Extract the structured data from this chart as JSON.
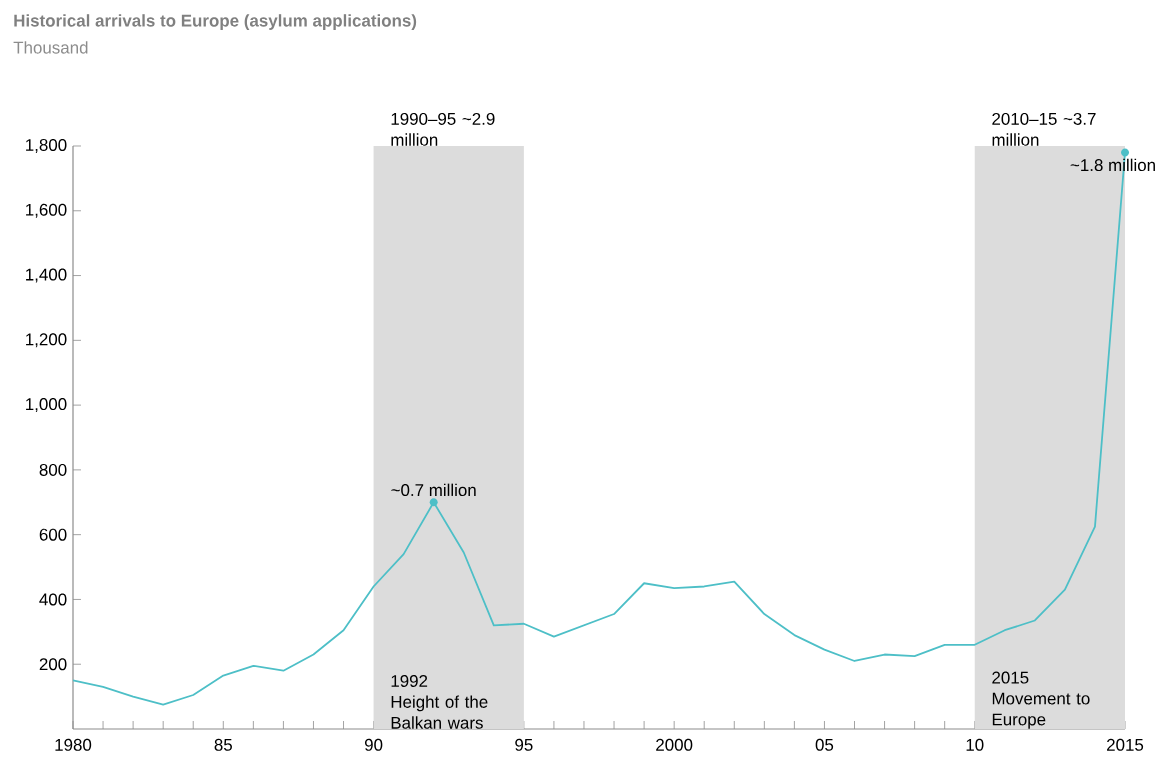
{
  "chart_data": {
    "type": "line",
    "title": "Historical arrivals to Europe (asylum applications)",
    "subtitle": "Thousand",
    "x": [
      1980,
      1981,
      1982,
      1983,
      1984,
      1985,
      1986,
      1987,
      1988,
      1989,
      1990,
      1991,
      1992,
      1993,
      1994,
      1995,
      1996,
      1997,
      1998,
      1999,
      2000,
      2001,
      2002,
      2003,
      2004,
      2005,
      2006,
      2007,
      2008,
      2009,
      2010,
      2011,
      2012,
      2013,
      2014,
      2015
    ],
    "values": [
      150,
      130,
      100,
      75,
      105,
      165,
      195,
      180,
      230,
      305,
      440,
      540,
      700,
      545,
      320,
      325,
      285,
      320,
      355,
      450,
      435,
      440,
      455,
      355,
      290,
      245,
      210,
      230,
      225,
      260,
      260,
      305,
      335,
      430,
      625,
      1780
    ],
    "color": "#4dbfc7",
    "xlim": [
      1980,
      2015
    ],
    "ylim": [
      0,
      1800
    ],
    "xticks": [
      1980,
      {
        "value": 1981,
        "label": null
      },
      {
        "value": 1982,
        "label": null
      },
      {
        "value": 1983,
        "label": null
      },
      {
        "value": 1984,
        "label": null
      },
      {
        "value": 1985,
        "label": "85"
      },
      {
        "value": 1986,
        "label": null
      },
      {
        "value": 1987,
        "label": null
      },
      {
        "value": 1988,
        "label": null
      },
      {
        "value": 1989,
        "label": null
      },
      {
        "value": 1990,
        "label": "90"
      },
      {
        "value": 1991,
        "label": null
      },
      {
        "value": 1992,
        "label": null
      },
      {
        "value": 1993,
        "label": null
      },
      {
        "value": 1994,
        "label": null
      },
      {
        "value": 1995,
        "label": "95"
      },
      {
        "value": 1996,
        "label": null
      },
      {
        "value": 1997,
        "label": null
      },
      {
        "value": 1998,
        "label": null
      },
      {
        "value": 1999,
        "label": null
      },
      2000,
      {
        "value": 2001,
        "label": null
      },
      {
        "value": 2002,
        "label": null
      },
      {
        "value": 2003,
        "label": null
      },
      {
        "value": 2004,
        "label": null
      },
      {
        "value": 2005,
        "label": "05"
      },
      {
        "value": 2006,
        "label": null
      },
      {
        "value": 2007,
        "label": null
      },
      {
        "value": 2008,
        "label": null
      },
      {
        "value": 2009,
        "label": null
      },
      {
        "value": 2010,
        "label": "10"
      },
      {
        "value": 2011,
        "label": null
      },
      {
        "value": 2012,
        "label": null
      },
      {
        "value": 2013,
        "label": null
      },
      {
        "value": 2014,
        "label": null
      },
      2015
    ],
    "yticks": [
      {
        "value": 200,
        "label": "200"
      },
      {
        "value": 400,
        "label": "400"
      },
      {
        "value": 600,
        "label": "600"
      },
      {
        "value": 800,
        "label": "800"
      },
      {
        "value": 1000,
        "label": "1,000"
      },
      {
        "value": 1200,
        "label": "1,200"
      },
      {
        "value": 1400,
        "label": "1,400"
      },
      {
        "value": 1600,
        "label": "1,600"
      },
      {
        "value": 1800,
        "label": "1,800"
      }
    ],
    "bands": [
      {
        "axis": "x",
        "from": 1990,
        "to": 1995,
        "label": "1990–95 ~2.9 million",
        "color": "#dcdcdc"
      },
      {
        "axis": "x",
        "from": 2010,
        "to": 2015,
        "label": "2010–15 ~3.7 million",
        "color": "#dcdcdc"
      }
    ],
    "annotations": [
      {
        "text": "~0.7 million",
        "x": 1992,
        "y": 700
      },
      {
        "text": "~1.8 million",
        "x": 2015,
        "y": 1780
      },
      "1992",
      "Height of the Balkan wars",
      "2015",
      "Movement to Europe"
    ]
  }
}
